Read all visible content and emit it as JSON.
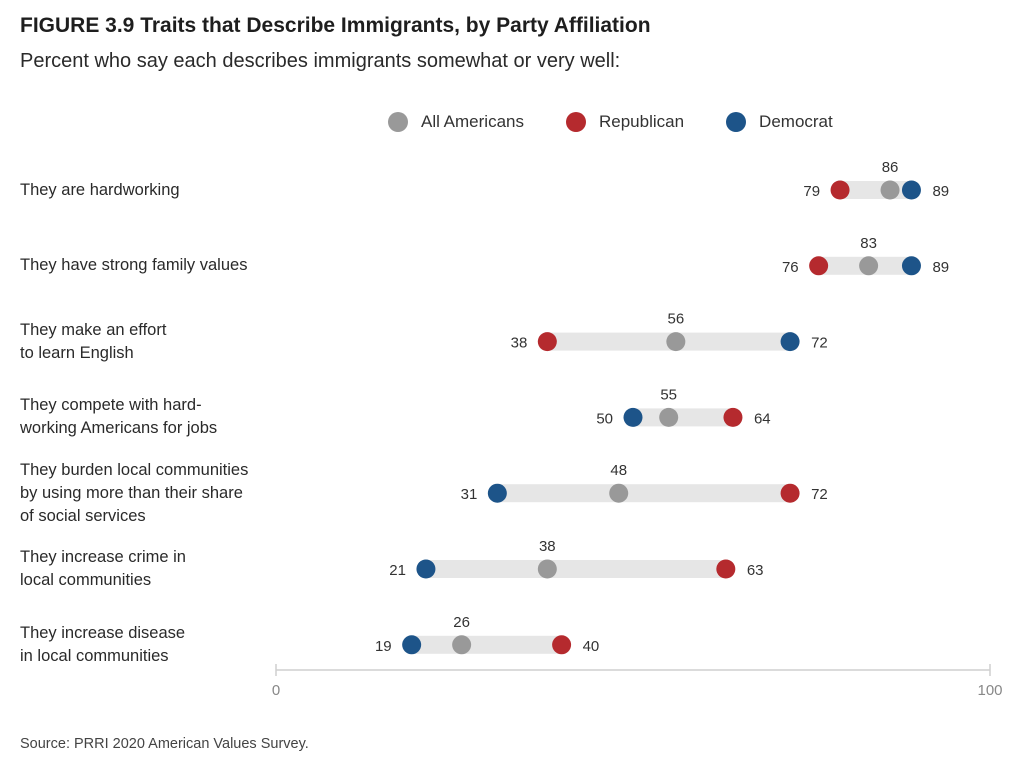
{
  "title": "FIGURE 3.9 Traits that Describe Immigrants, by Party Affiliation",
  "subtitle": "Percent who say each describes immigrants somewhat or very well:",
  "source": "Source: PRRI 2020 American Values Survey.",
  "colors": {
    "all": "#999999",
    "republican": "#b52a2e",
    "democrat": "#1d5489",
    "bar": "#e6e6e6",
    "axis": "#cfcfcf"
  },
  "chart_data": {
    "type": "dot-range",
    "xlim": [
      0,
      100
    ],
    "x_ticks": [
      "0",
      "100"
    ],
    "legend": [
      {
        "key": "all",
        "label": "All Americans"
      },
      {
        "key": "republican",
        "label": "Republican"
      },
      {
        "key": "democrat",
        "label": "Democrat"
      }
    ],
    "rows": [
      {
        "label_lines": [
          "They are hardworking"
        ],
        "all": 86,
        "republican": 79,
        "democrat": 89
      },
      {
        "label_lines": [
          "They have strong family values"
        ],
        "all": 83,
        "republican": 76,
        "democrat": 89
      },
      {
        "label_lines": [
          "They make an effort",
          "to learn English"
        ],
        "all": 56,
        "republican": 38,
        "democrat": 72
      },
      {
        "label_lines": [
          "They compete with hard-",
          "working Americans for jobs"
        ],
        "all": 55,
        "republican": 64,
        "democrat": 50
      },
      {
        "label_lines": [
          "They burden local communities",
          "by using more than their share",
          "of social services"
        ],
        "all": 48,
        "republican": 72,
        "democrat": 31
      },
      {
        "label_lines": [
          "They increase crime in",
          "local communities"
        ],
        "all": 38,
        "republican": 63,
        "democrat": 21
      },
      {
        "label_lines": [
          "They increase disease",
          "in local communities"
        ],
        "all": 26,
        "republican": 40,
        "democrat": 19
      }
    ]
  }
}
